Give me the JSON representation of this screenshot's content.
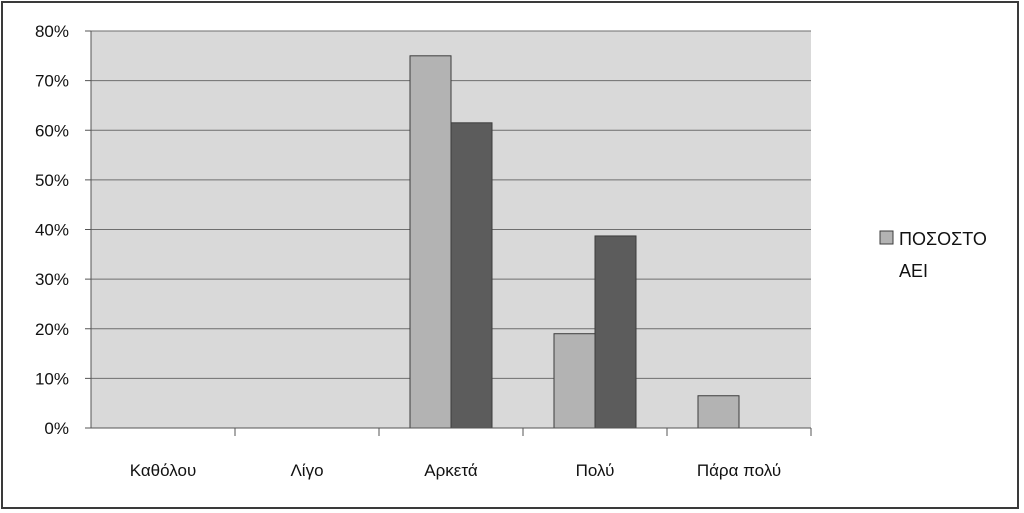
{
  "chart_data": {
    "type": "bar",
    "categories": [
      "Καθόλου",
      "Λίγο",
      "Αρκετά",
      "Πολύ",
      "Πάρα πολύ"
    ],
    "series": [
      {
        "name": "ΠΟΣΟΣΤΟ ΑΕΙ",
        "values": [
          0,
          0,
          75,
          19,
          6.5
        ],
        "color": "#b3b3b3"
      },
      {
        "values": [
          0,
          0,
          61.5,
          38.7,
          0
        ],
        "color": "#5c5c5c"
      }
    ],
    "ylim": [
      0,
      80
    ],
    "yticks": [
      "0%",
      "10%",
      "20%",
      "30%",
      "40%",
      "50%",
      "60%",
      "70%",
      "80%"
    ],
    "grid": true,
    "plot_background": "#d9d9d9",
    "legend": {
      "placement": "right",
      "line1": "ΠΟΣΟΣΤΟ",
      "line2": "ΑΕΙ"
    }
  }
}
